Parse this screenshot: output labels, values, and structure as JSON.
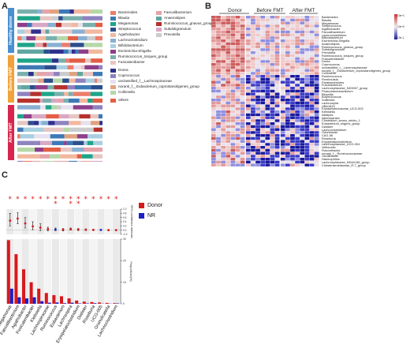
{
  "panels": {
    "a": "A",
    "b": "B",
    "c": "C"
  },
  "panel_a": {
    "groups": [
      "Healthy donor",
      "Before FMT",
      "After FMT"
    ],
    "group_colors": [
      "#4a8fcf",
      "#f2a23a",
      "#d9254d"
    ],
    "legend_col1": [
      {
        "name": "Bacteroides",
        "color": "#ec7d6b"
      },
      {
        "name": "Blautia",
        "color": "#3d79b6"
      },
      {
        "name": "Megamonas",
        "color": "#1fa589"
      },
      {
        "name": "Streptococcus",
        "color": "#2b4e8c"
      },
      {
        "name": "Agathobacter",
        "color": "#f2b89f"
      },
      {
        "name": "Lachnoclostridium",
        "color": "#8ab0d3"
      },
      {
        "name": "Bifidobacterium",
        "color": "#a9cfe0"
      },
      {
        "name": "Escherichia-Shigella",
        "color": "#8e3e8a"
      },
      {
        "name": "Ruminococcus_torques_group",
        "color": "#79b0ad"
      },
      {
        "name": "Fusicatenibacter",
        "color": "#e7c6c2"
      },
      {
        "name": "Dorea",
        "color": "#2f2f8f"
      },
      {
        "name": "Coprococcus",
        "color": "#8e82bf"
      },
      {
        "name": "unclassified_f__Lachnospiraceae",
        "color": "#e6e0ef"
      },
      {
        "name": "norank_f__Eubacterium_coprostanoligenes_group",
        "color": "#e2a27f"
      },
      {
        "name": "Collinsella",
        "color": "#b6d7a8"
      },
      {
        "name": "others",
        "color": "#e35e45"
      }
    ],
    "legend_col2": [
      {
        "name": "Faecalibacterium",
        "color": "#e6a3a8"
      },
      {
        "name": "Anaerostipes",
        "color": "#5fa7a0"
      },
      {
        "name": "Ruminococcus_gnavus_group",
        "color": "#b5322e"
      },
      {
        "name": "Subdoligranulum",
        "color": "#d8a8c5"
      },
      {
        "name": "Prevotella",
        "color": "#cccccc"
      }
    ]
  },
  "panel_b": {
    "groups": [
      "Donor",
      "Before FMT",
      "After FMT"
    ],
    "scale_labels": [
      "10e+1",
      "10e+0",
      "10e-1"
    ],
    "rows": [
      "Bacteroides",
      "Blautia",
      "Megamonas",
      "Streptococcus",
      "Agathobacter",
      "Faecalibacterium",
      "Lachnoclostridium",
      "Bifidobacterium",
      "Escherichia-Shigella",
      "Anaerostipes",
      "Ruminococcus_gnavus_group",
      "Subdoligranulum",
      "Prevotella",
      "Ruminococcus_torques_group",
      "Fusicatenibacter",
      "Dorea",
      "Coprococcus",
      "unclassified_f__Lachnospiraceae",
      "norank_f__Eubacterium_coprostanoligenes_group",
      "Collinsella",
      "Ruminococcus",
      "Romboutsia",
      "Parabacteroides",
      "Fusobacterium",
      "Lachnospiraceae_ND3007_group",
      "Phascolarctobacterium",
      "Bilophila",
      "Butyricicoccus",
      "Sutterella",
      "Lachnospira",
      "UBA1819",
      "Erysipelotrichaceae_UCG-003",
      "Klebsiella",
      "Alistipes",
      "Akkermansia",
      "Clostridium_sensu_stricto_1",
      "Eubacterium_eligens_group",
      "Dialister",
      "Lachnoclostridium",
      "Odoribacter",
      "CAG-56",
      "Roseburia",
      "Erysipelatoclostridium",
      "Lachnospiraceae_UCG-004",
      "Veillonella",
      "Flavonifractor",
      "norank_f__Ruminococcaceae",
      "Oscillibacter",
      "Haemophilus",
      "Lachnospiraceae_NK4A136_group",
      "Christensenellaceae_R-7_group"
    ]
  },
  "panel_c": {
    "legend": [
      {
        "name": "Donor",
        "color": "#d7191c"
      },
      {
        "name": "NR",
        "color": "#1f1fc8"
      }
    ],
    "ylabel_top": "95% confidence intervals",
    "ylabel_bottom": "Proportions(%)",
    "star_counts": [
      1,
      1,
      1,
      1,
      1,
      1,
      2,
      1,
      2,
      2,
      1,
      1,
      1,
      1,
      1
    ],
    "top_ticks": [
      "1.0",
      "0.8",
      "0.6",
      "0.4",
      "0.2",
      "0.0",
      "-0.2"
    ],
    "bottom_ticks": [
      "30",
      "20",
      "10",
      "0"
    ]
  },
  "chart_data": [
    {
      "type": "bar",
      "xlabel": "",
      "ylabel": "Proportions(%)",
      "ylim": [
        0,
        30
      ],
      "categories": [
        "Megamonas",
        "Faecalibacterium",
        "Agathobacter",
        "Fusicatenibacter",
        "Klebsiella",
        "Lachnospiraceae",
        "Ruminococcus",
        "Eubacterium",
        "Lachnospira",
        "Erysipelatoclostridium",
        "Dialister",
        "Roseburia",
        "UCG-005",
        "Granulicatella",
        "Lachnoclostridium"
      ],
      "series": [
        {
          "name": "Donor",
          "values": [
            29.5,
            23,
            16,
            10,
            7,
            5,
            4,
            3.5,
            2.5,
            1.5,
            1,
            0.8,
            0.6,
            0.4,
            0.3
          ]
        },
        {
          "name": "NR",
          "values": [
            7,
            3,
            2.5,
            3,
            1.2,
            0.5,
            0.6,
            0.3,
            0.5,
            0.2,
            0.2,
            0.3,
            0.1,
            0.1,
            0.2
          ]
        }
      ]
    },
    {
      "type": "scatter",
      "ylabel": "95% confidence intervals",
      "ylim": [
        -0.2,
        1.0
      ],
      "categories": [
        "Megamonas",
        "Faecalibacterium",
        "Agathobacter",
        "Fusicatenibacter",
        "Klebsiella",
        "Lachnospiraceae",
        "Ruminococcus",
        "Eubacterium",
        "Lachnospira",
        "Erysipelatoclostridium",
        "Dialister",
        "Roseburia",
        "UCG-005",
        "Granulicatella",
        "Lachnoclostridium"
      ],
      "values": [
        0.45,
        0.55,
        0.32,
        0.18,
        0.12,
        0.05,
        0.03,
        0.02,
        0.05,
        0.03,
        0.02,
        0.01,
        0.01,
        0.0,
        0.0
      ],
      "ci_low": [
        0.2,
        0.3,
        0.1,
        0.02,
        -0.02,
        -0.04,
        -0.03,
        -0.04,
        0.0,
        -0.02,
        -0.02,
        -0.02,
        -0.01,
        -0.02,
        -0.02
      ],
      "ci_high": [
        0.8,
        0.82,
        0.6,
        0.4,
        0.3,
        0.14,
        0.1,
        0.08,
        0.1,
        0.08,
        0.06,
        0.04,
        0.03,
        0.02,
        0.02
      ],
      "point_colors": [
        "donor",
        "donor",
        "donor",
        "donor",
        "donor",
        "donor",
        "nr",
        "donor",
        "donor",
        "donor",
        "donor",
        "donor",
        "nr",
        "donor",
        "donor"
      ]
    }
  ]
}
